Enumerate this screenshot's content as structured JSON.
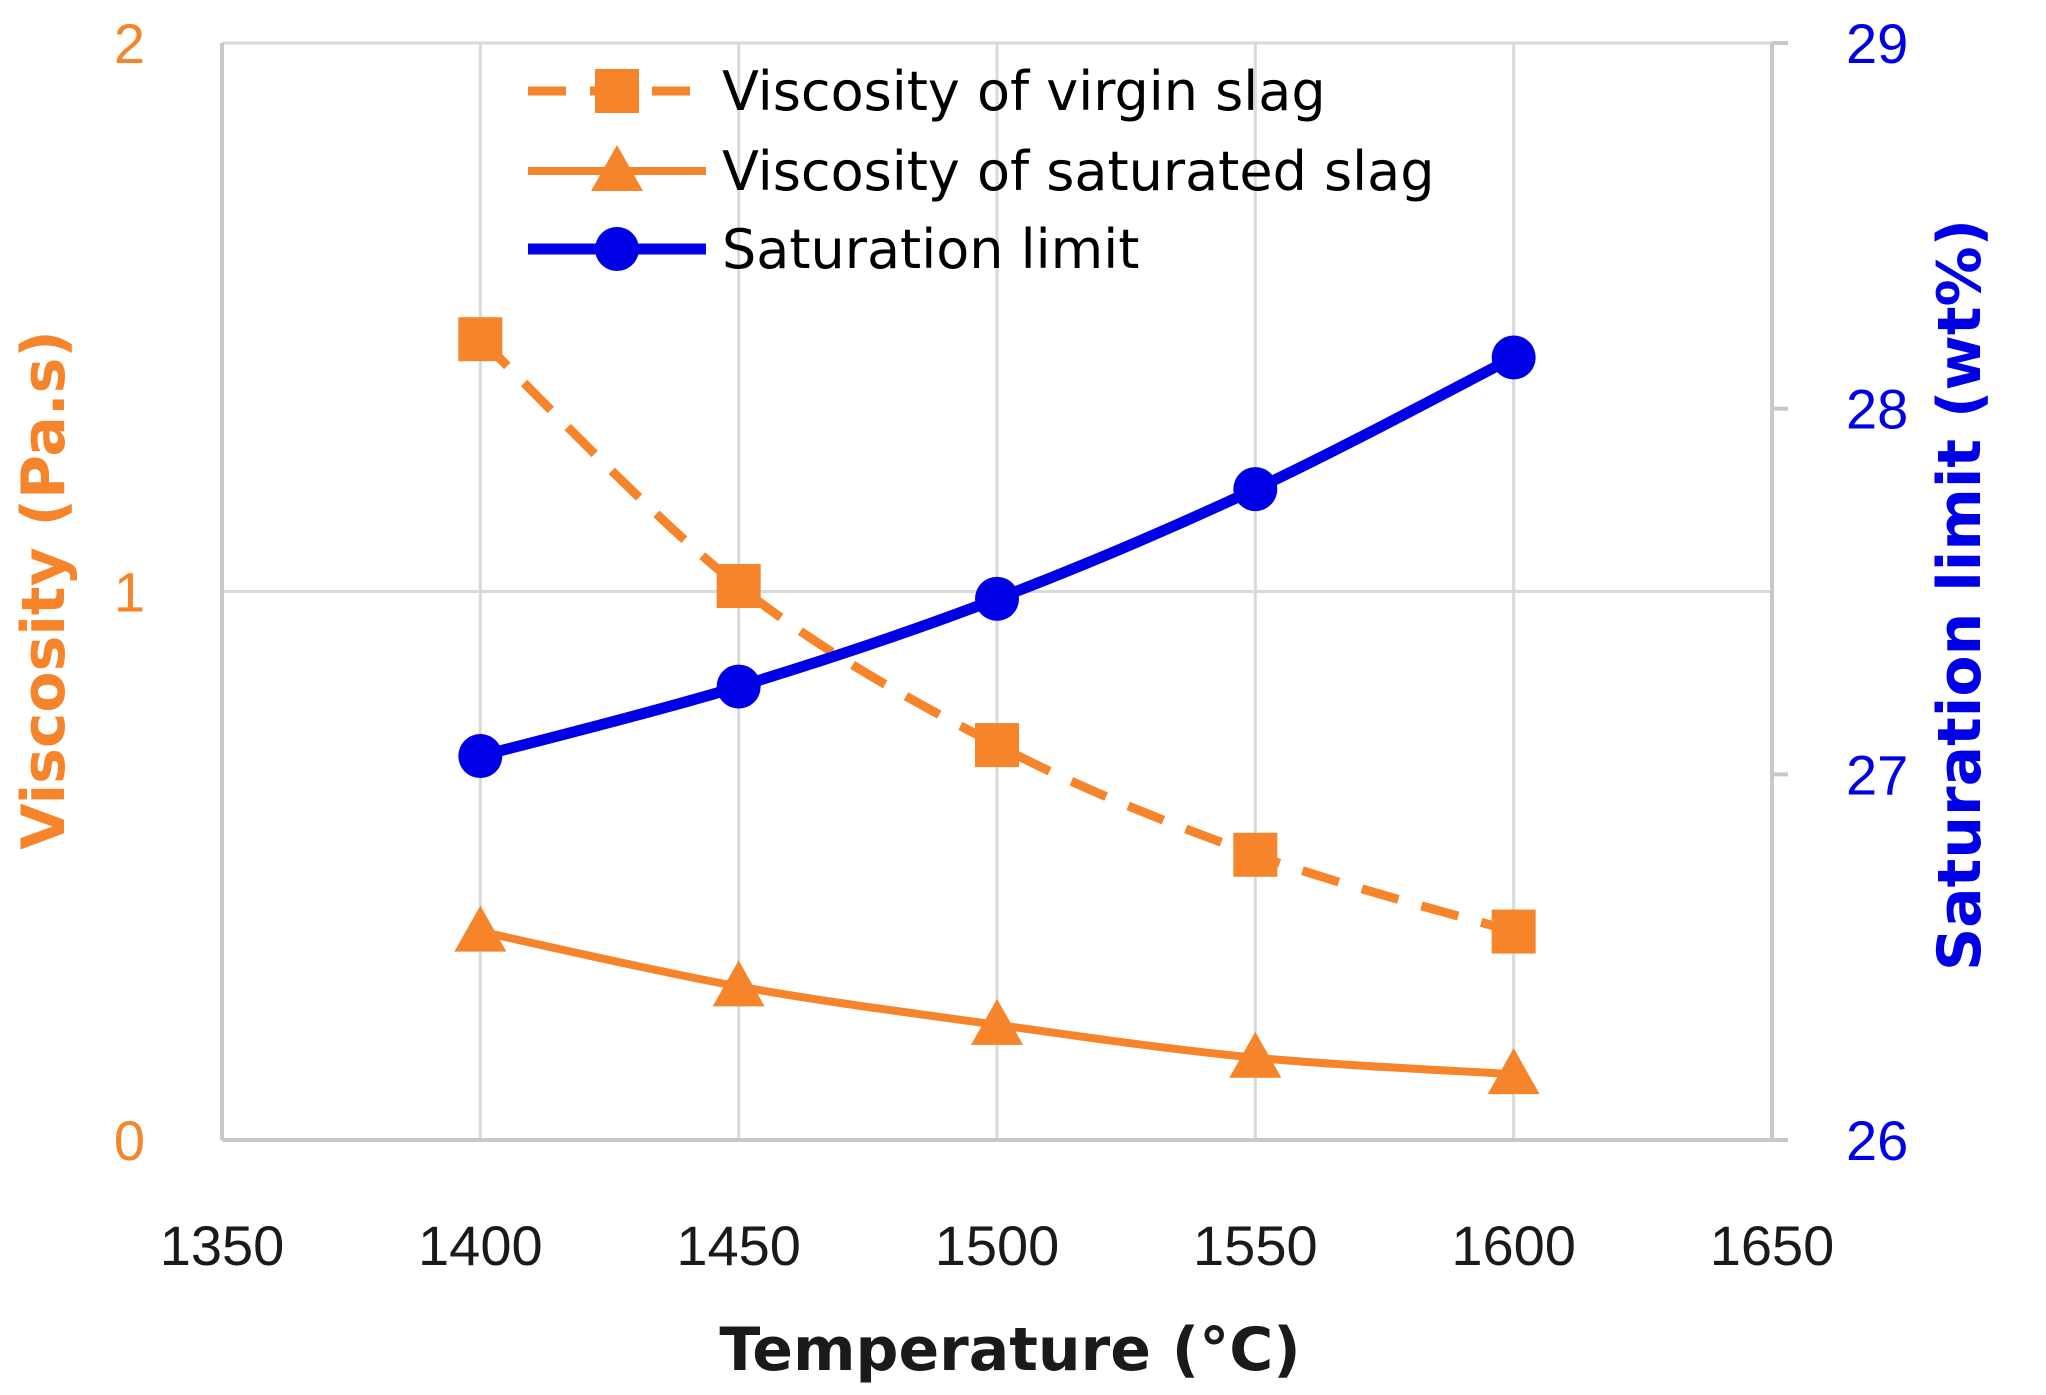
{
  "chart_data": {
    "type": "line",
    "x": [
      1400,
      1450,
      1500,
      1550,
      1600
    ],
    "xlim": [
      1350,
      1650
    ],
    "xticks": [
      "1350",
      "1400",
      "1450",
      "1500",
      "1550",
      "1600",
      "1650"
    ],
    "xlabel": "Temperature (°C)",
    "ylabel": "Viscosity (Pa.s)",
    "ylim": [
      0,
      2
    ],
    "yticks": [
      "0",
      "1",
      "2"
    ],
    "y2label": "Saturation limit (wt%)",
    "y2lim": [
      26,
      29
    ],
    "y2ticks": [
      "26",
      "27",
      "28",
      "29"
    ],
    "grid": true,
    "legend_position": "top-center",
    "series": [
      {
        "name": "Viscosity of virgin slag",
        "axis": "left",
        "style": "dashed",
        "marker": "square",
        "color": "#F5842A",
        "values": [
          1.46,
          1.01,
          0.72,
          0.52,
          0.38
        ]
      },
      {
        "name": "Viscosity of saturated slag",
        "axis": "left",
        "style": "solid",
        "marker": "triangle",
        "color": "#F5842A",
        "values": [
          0.38,
          0.28,
          0.21,
          0.15,
          0.12
        ]
      },
      {
        "name": "Saturation limit",
        "axis": "right",
        "style": "solid",
        "marker": "circle",
        "color": "#0000E6",
        "values": [
          27.05,
          27.24,
          27.48,
          27.78,
          28.14
        ]
      }
    ]
  },
  "colors": {
    "left_axis": "#F5842A",
    "right_axis": "#0000E6",
    "grid": "#d9d9d9"
  }
}
